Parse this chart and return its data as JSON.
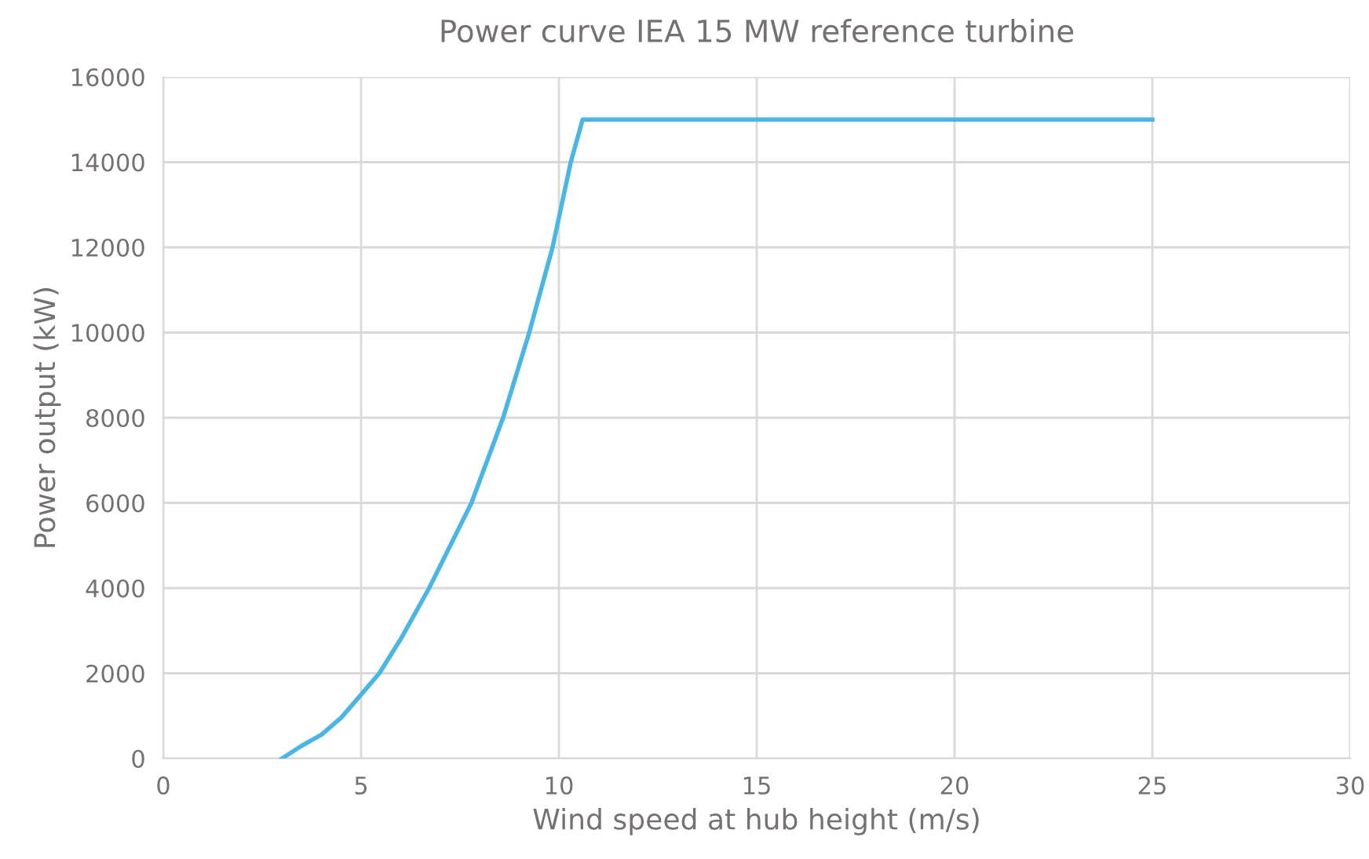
{
  "chart_data": {
    "type": "line",
    "title": "Power curve IEA 15 MW reference turbine",
    "xlabel": "Wind speed at hub height (m/s)",
    "ylabel": "Power output (kW)",
    "series": [
      {
        "color": "#4ab6e6",
        "x": [
          3,
          3.5,
          4,
          4.5,
          5,
          5.46,
          6,
          6.72,
          7.79,
          8.59,
          9.25,
          9.84,
          10.3,
          10.6,
          15,
          20,
          25
        ],
        "values": [
          0,
          300,
          560,
          960,
          1500,
          2000,
          2800,
          4000,
          6000,
          8000,
          10000,
          12000,
          14000,
          15000,
          15000,
          15000,
          15000
        ]
      }
    ],
    "xlim": [
      0,
      30
    ],
    "xticks": [
      0,
      5,
      10,
      15,
      20,
      25,
      30
    ],
    "ylim": [
      0,
      16000
    ],
    "yticks": [
      0,
      2000,
      4000,
      6000,
      8000,
      10000,
      12000,
      14000,
      16000
    ],
    "grid": true,
    "legend": false,
    "line_style": "solid",
    "marker": "none"
  }
}
